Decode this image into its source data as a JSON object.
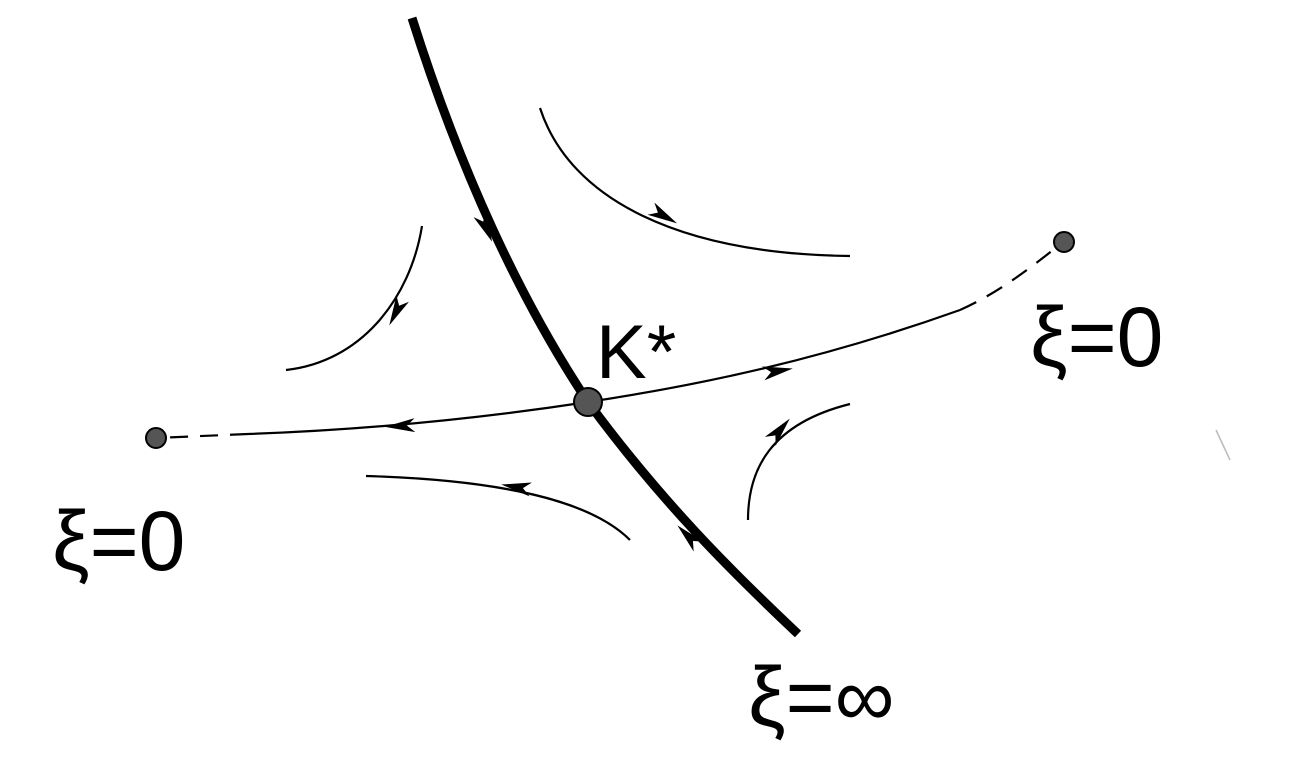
{
  "diagram": {
    "fixed_point_label": "K*",
    "left_endpoint_label": "ξ=0",
    "right_endpoint_label": "ξ=0",
    "bottom_endpoint_label": "ξ=∞"
  },
  "colors": {
    "ink": "#000000",
    "background": "#ffffff",
    "point_fill": "#555555"
  }
}
